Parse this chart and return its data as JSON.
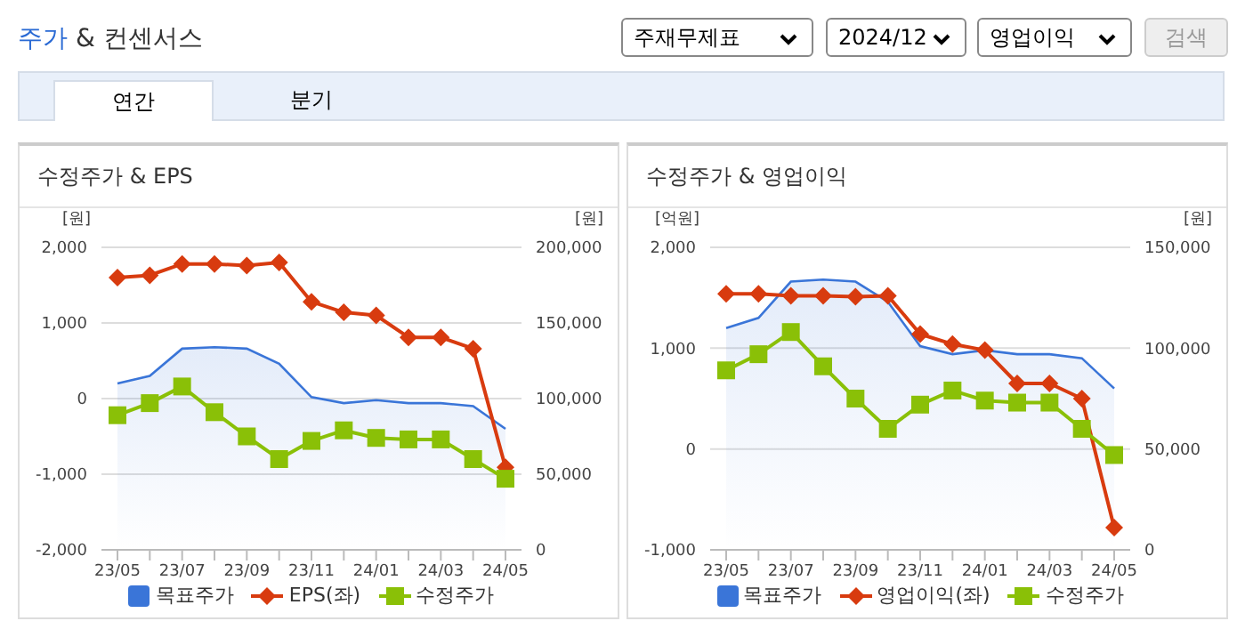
{
  "chart_data": [
    {
      "type": "line",
      "title": "수정주가 & EPS",
      "ylabel": "[원]",
      "y2label": "[원]",
      "annotations": [
        "주가 & 컨센서스",
        "주재무제표",
        "2024/12",
        "영업이익",
        "검색",
        "연간",
        "분기"
      ],
      "categories": [
        "23/05",
        null,
        "23/07",
        null,
        "23/09",
        null,
        "23/11",
        null,
        "24/01",
        null,
        "24/03",
        null,
        "24/05"
      ],
      "series": [
        {
          "name": "목표주가",
          "type": "area",
          "axis": "y2",
          "color": "#3a75d8",
          "marker": "none",
          "values": [
            110000,
            115000,
            133000,
            134000,
            133000,
            123000,
            101000,
            97000,
            99000,
            97000,
            97000,
            95000,
            80000
          ]
        },
        {
          "name": "EPS(좌)",
          "color": "#d83b0f",
          "marker": "diamond",
          "values": [
            1600,
            1630,
            1780,
            1780,
            1760,
            1800,
            1280,
            1140,
            1100,
            810,
            810,
            660,
            -910
          ]
        },
        {
          "name": "수정주가",
          "axis": "y2",
          "color": "#8ac007",
          "marker": "square",
          "values": [
            89000,
            97000,
            108000,
            91000,
            75000,
            60000,
            72000,
            79000,
            74000,
            73000,
            73000,
            60000,
            47000
          ]
        }
      ],
      "ylim": [
        -2000,
        2000
      ],
      "yticks": [
        {
          "value": -2000,
          "label": "-2,000"
        },
        {
          "value": -1000,
          "label": "-1,000"
        },
        0,
        {
          "value": 1000,
          "label": "1,000"
        },
        {
          "value": 2000,
          "label": "2,000"
        }
      ],
      "y2lim": [
        0,
        200000
      ],
      "y2ticks": [
        0,
        {
          "value": 50000,
          "label": "50,000"
        },
        {
          "value": 100000,
          "label": "100,000"
        },
        {
          "value": 150000,
          "label": "150,000"
        },
        {
          "value": 200000,
          "label": "200,000"
        }
      ],
      "grid": "y",
      "legend": "bottom"
    },
    {
      "type": "line",
      "title": "수정주가 & 영업이익",
      "ylabel": "[억원]",
      "y2label": "[원]",
      "categories": [
        "23/05",
        null,
        "23/07",
        null,
        "23/09",
        null,
        "23/11",
        null,
        "24/01",
        null,
        "24/03",
        null,
        "24/05"
      ],
      "series": [
        {
          "name": "목표주가",
          "type": "area",
          "axis": "y2",
          "color": "#3a75d8",
          "marker": "none",
          "values": [
            110000,
            115000,
            133000,
            134000,
            133000,
            123000,
            101000,
            97000,
            99000,
            97000,
            97000,
            95000,
            80000
          ]
        },
        {
          "name": "영업이익(좌)",
          "color": "#d83b0f",
          "marker": "diamond",
          "values": [
            1540,
            1540,
            1520,
            1520,
            1510,
            1520,
            1140,
            1040,
            980,
            650,
            650,
            500,
            -780
          ]
        },
        {
          "name": "수정주가",
          "axis": "y2",
          "color": "#8ac007",
          "marker": "square",
          "values": [
            89000,
            97000,
            108000,
            91000,
            75000,
            60000,
            72000,
            79000,
            74000,
            73000,
            73000,
            60000,
            47000
          ]
        }
      ],
      "ylim": [
        -1000,
        2000
      ],
      "yticks": [
        {
          "value": -1000,
          "label": "-1,000"
        },
        0,
        {
          "value": 1000,
          "label": "1,000"
        },
        {
          "value": 2000,
          "label": "2,000"
        }
      ],
      "y2lim": [
        0,
        150000
      ],
      "y2ticks": [
        0,
        {
          "value": 50000,
          "label": "50,000"
        },
        {
          "value": 100000,
          "label": "100,000"
        },
        {
          "value": 150000,
          "label": "150,000"
        }
      ],
      "grid": "y",
      "legend": "bottom"
    }
  ]
}
